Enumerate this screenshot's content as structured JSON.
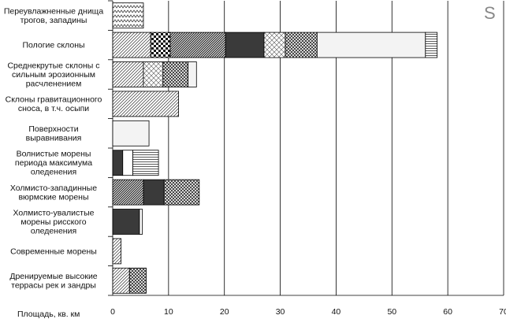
{
  "chart_data": {
    "type": "bar",
    "orientation": "horizontal",
    "stacked": true,
    "corner_label": "S",
    "xlabel": "Площадь, кв. км",
    "xlim": [
      0,
      70
    ],
    "xticks": [
      0,
      10,
      20,
      30,
      40,
      50,
      60,
      70
    ],
    "grid": "vertical",
    "categories": [
      [
        "Переувлажненные днища",
        "трогов, западины"
      ],
      [
        "Пологие склоны"
      ],
      [
        "Среднекрутые склоны с",
        "сильным эрозионным",
        "расчленением"
      ],
      [
        "Склоны гравитационного",
        "сноса, в т.ч. осыпи"
      ],
      [
        "Поверхности",
        "выравнивания"
      ],
      [
        "Волнистые морены",
        "периода максимума",
        "оледенения"
      ],
      [
        "Холмисто-западинные",
        "вюрмские морены"
      ],
      [
        "Холмисто-увалистые",
        "морены рисского",
        "оледенения"
      ],
      [
        "Современные морены"
      ],
      [
        "Дренируемые высокие",
        "террасы рек и зандры"
      ]
    ],
    "bars": [
      [
        {
          "value": 5.5,
          "pattern": "zigzag"
        }
      ],
      [
        {
          "value": 6.8,
          "pattern": "diag-thin"
        },
        {
          "value": 3.5,
          "pattern": "checker"
        },
        {
          "value": 9.9,
          "pattern": "diag-dense"
        },
        {
          "value": 6.9,
          "pattern": "solid-dark"
        },
        {
          "value": 3.8,
          "pattern": "cross-thin"
        },
        {
          "value": 5.7,
          "pattern": "cross-dense"
        },
        {
          "value": 19.4,
          "pattern": "light"
        },
        {
          "value": 2.1,
          "pattern": "horiz-lines"
        }
      ],
      [
        {
          "value": 5.5,
          "pattern": "diag-thin"
        },
        {
          "value": 3.5,
          "pattern": "cross-thin"
        },
        {
          "value": 4.5,
          "pattern": "cross-dense"
        },
        {
          "value": 1.5,
          "pattern": "light"
        }
      ],
      [
        {
          "value": 11.8,
          "pattern": "diag-thin"
        }
      ],
      [
        {
          "value": 6.5,
          "pattern": "light"
        }
      ],
      [
        {
          "value": 1.8,
          "pattern": "solid-dark"
        },
        {
          "value": 1.8,
          "pattern": "white"
        },
        {
          "value": 4.6,
          "pattern": "horiz-lines"
        }
      ],
      [
        {
          "value": 5.5,
          "pattern": "diag-dense"
        },
        {
          "value": 3.7,
          "pattern": "solid-dark"
        },
        {
          "value": 6.3,
          "pattern": "cross-dense"
        }
      ],
      [
        {
          "value": 4.8,
          "pattern": "solid-dark"
        },
        {
          "value": 0.5,
          "pattern": "white"
        }
      ],
      [
        {
          "value": 1.5,
          "pattern": "diag-thin"
        }
      ],
      [
        {
          "value": 3.0,
          "pattern": "diag-thin"
        },
        {
          "value": 3.0,
          "pattern": "cross-dense"
        }
      ]
    ]
  }
}
